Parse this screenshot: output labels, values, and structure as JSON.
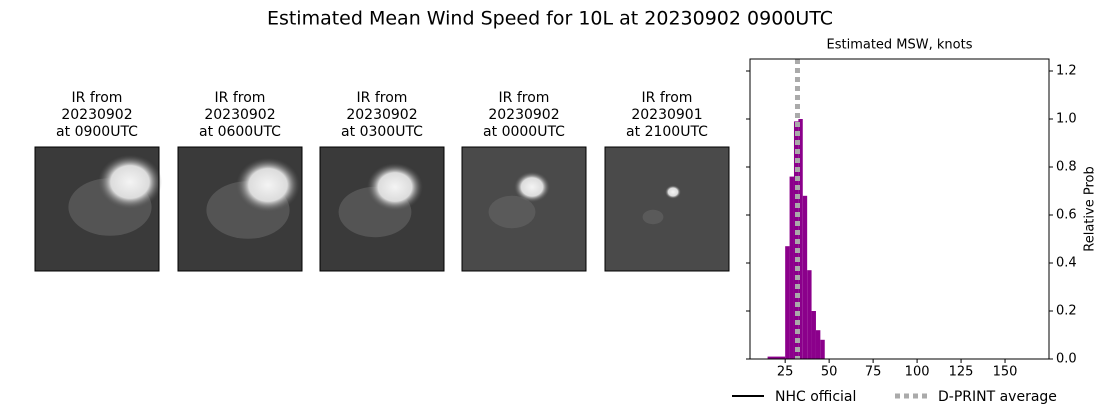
{
  "title": "Estimated Mean Wind Speed for 10L at 20230902 0900UTC",
  "panels": [
    {
      "title": [
        "IR from",
        "20230902",
        "at 0900UTC"
      ]
    },
    {
      "title": [
        "IR from",
        "20230902",
        "at 0600UTC"
      ]
    },
    {
      "title": [
        "IR from",
        "20230902",
        "at 0300UTC"
      ]
    },
    {
      "title": [
        "IR from",
        "20230902",
        "at 0000UTC"
      ]
    },
    {
      "title": [
        "IR from",
        "20230901",
        "at 2100UTC"
      ]
    }
  ],
  "chart_data": {
    "type": "histogram",
    "title": "Estimated MSW, knots",
    "y_label": "Relative Prob",
    "bins": [
      15,
      25,
      27.5,
      30,
      32.5,
      35,
      37.5,
      40,
      42.5,
      45,
      47.5
    ],
    "values": [
      0.01,
      0.47,
      0.76,
      0.99,
      1.0,
      0.68,
      0.37,
      0.2,
      0.12,
      0.08
    ],
    "color": "#8b008b",
    "xlim": [
      5,
      175
    ],
    "xticks": [
      25,
      50,
      75,
      100,
      125,
      150
    ],
    "ylim": [
      0,
      1.25
    ],
    "yticks": [
      {
        "value": 0,
        "label": "0.0"
      },
      {
        "value": 0.2,
        "label": "0.2"
      },
      {
        "value": 0.4,
        "label": "0.4"
      },
      {
        "value": 0.6,
        "label": "0.6"
      },
      {
        "value": 0.8,
        "label": "0.8"
      },
      {
        "value": 1.0,
        "label": "1.0"
      },
      {
        "value": 1.2,
        "label": "1.2"
      }
    ],
    "reference_lines": [
      {
        "name": "NHC official",
        "color": "#000000",
        "style": "solid",
        "x": null
      },
      {
        "name": "D-PRINT average",
        "color": "#aaaaaa",
        "style": "dotted",
        "x": 32
      }
    ]
  }
}
